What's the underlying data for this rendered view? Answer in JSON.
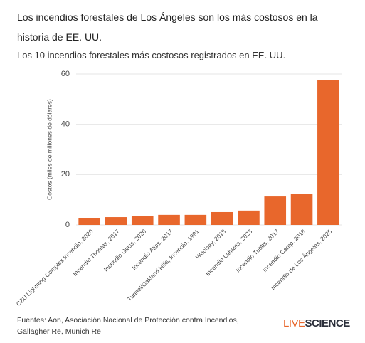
{
  "chart_data": {
    "type": "bar",
    "title": "Los incendios forestales de Los Ángeles son los más costosos en la historia de EE. UU.",
    "subtitle": "Los 10 incendios forestales más costosos registrados en EE. UU.",
    "y_label": "Costos (miles de millones de dólares)",
    "categories": [
      "CZU Lightning Complex Incendio, 2020",
      "Incendio Thomas, 2017",
      "Incendio Glass, 2020",
      "Incendio Atlas, 2017",
      "Tunnel/Oakland Hills, Incendio, 1991",
      "Woolsey, 2018",
      "Incendio Lahaina, 2023",
      "Incendio Tubbs, 2017",
      "Incendio Camp, 2018",
      "Incendio de Los Ángeles, 2025"
    ],
    "values": [
      2.8,
      3.1,
      3.4,
      4.0,
      4.0,
      5.1,
      5.7,
      11.3,
      12.4,
      57.7
    ],
    "color": "#e8672c",
    "ylim": [
      0,
      60
    ],
    "yticks": [
      0,
      20,
      40,
      60
    ],
    "grid": true,
    "source": "Fuentes: Aon, Asociación Nacional de Protección contra Incendios, Gallagher Re, Munich Re",
    "brand": [
      "LIVE",
      "SCIENCE"
    ]
  }
}
